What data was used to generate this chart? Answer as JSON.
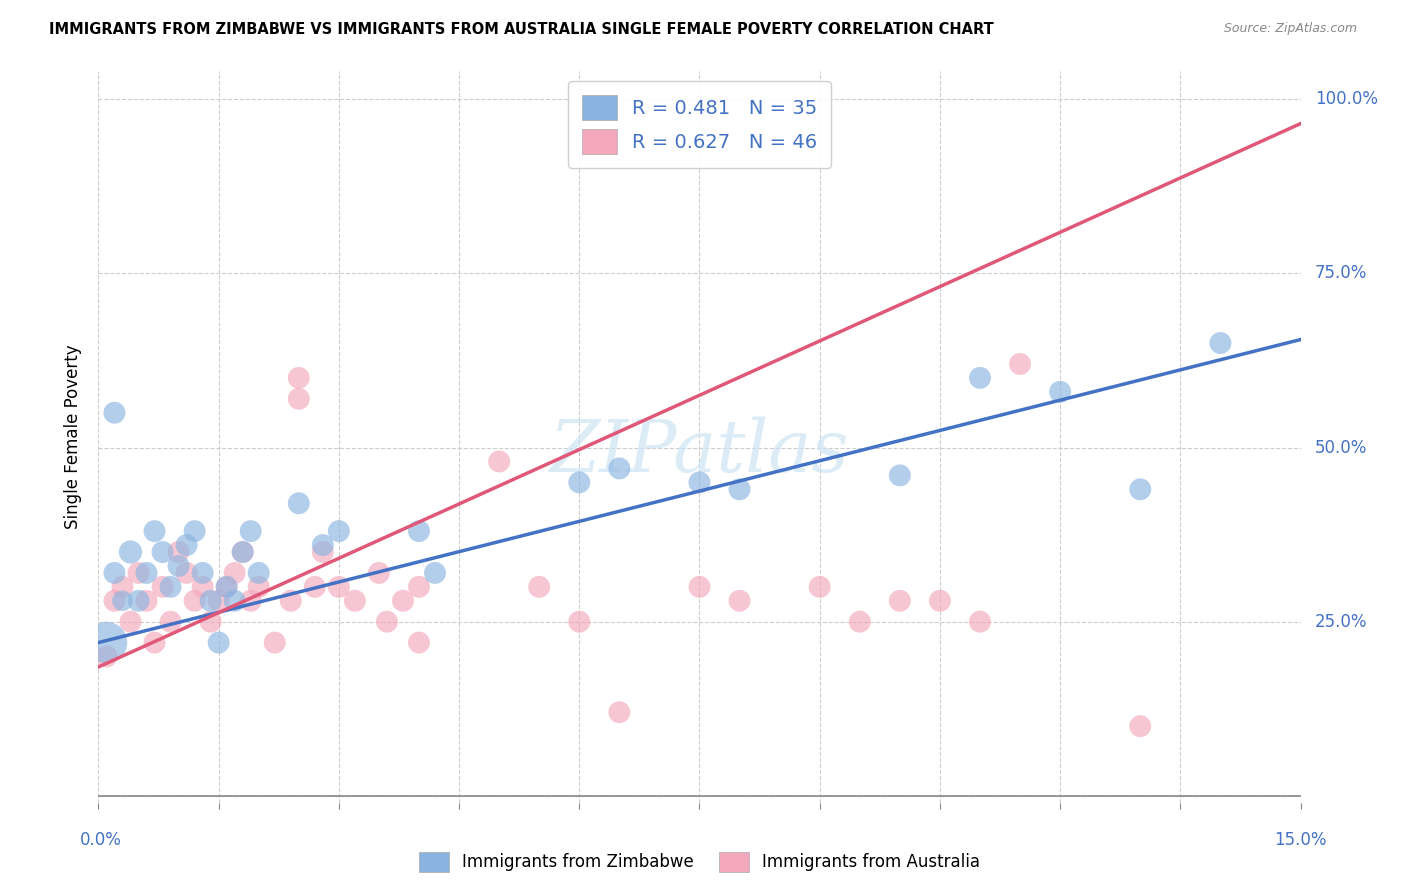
{
  "title": "IMMIGRANTS FROM ZIMBABWE VS IMMIGRANTS FROM AUSTRALIA SINGLE FEMALE POVERTY CORRELATION CHART",
  "source": "Source: ZipAtlas.com",
  "ylabel": "Single Female Poverty",
  "legend_label_1": "Immigrants from Zimbabwe",
  "legend_label_2": "Immigrants from Australia",
  "r1": 0.481,
  "n1": 35,
  "r2": 0.627,
  "n2": 46,
  "color_zimbabwe": "#8ab4e0",
  "color_australia": "#f4a8bc",
  "color_line_zimbabwe": "#4472c4",
  "color_line_australia": "#e05878",
  "watermark": "ZIPatlas",
  "xlim": [
    0.0,
    0.15
  ],
  "ylim": [
    -0.01,
    1.04
  ],
  "zim_trend": [
    0.22,
    0.655
  ],
  "aus_trend": [
    0.185,
    0.965
  ],
  "zimbabwe_points": [
    [
      0.001,
      0.22
    ],
    [
      0.002,
      0.32
    ],
    [
      0.003,
      0.28
    ],
    [
      0.004,
      0.35
    ],
    [
      0.005,
      0.28
    ],
    [
      0.006,
      0.32
    ],
    [
      0.007,
      0.38
    ],
    [
      0.008,
      0.35
    ],
    [
      0.009,
      0.3
    ],
    [
      0.01,
      0.33
    ],
    [
      0.011,
      0.36
    ],
    [
      0.012,
      0.38
    ],
    [
      0.013,
      0.32
    ],
    [
      0.014,
      0.28
    ],
    [
      0.015,
      0.22
    ],
    [
      0.016,
      0.3
    ],
    [
      0.017,
      0.28
    ],
    [
      0.018,
      0.35
    ],
    [
      0.019,
      0.38
    ],
    [
      0.02,
      0.32
    ],
    [
      0.025,
      0.42
    ],
    [
      0.028,
      0.36
    ],
    [
      0.03,
      0.38
    ],
    [
      0.04,
      0.38
    ],
    [
      0.042,
      0.32
    ],
    [
      0.06,
      0.45
    ],
    [
      0.065,
      0.47
    ],
    [
      0.075,
      0.45
    ],
    [
      0.08,
      0.44
    ],
    [
      0.1,
      0.46
    ],
    [
      0.11,
      0.6
    ],
    [
      0.12,
      0.58
    ],
    [
      0.13,
      0.44
    ],
    [
      0.14,
      0.65
    ],
    [
      0.002,
      0.55
    ]
  ],
  "zimbabwe_sizes": [
    900,
    250,
    220,
    280,
    250,
    250,
    250,
    250,
    250,
    250,
    250,
    250,
    250,
    250,
    250,
    250,
    250,
    250,
    250,
    250,
    250,
    250,
    250,
    250,
    250,
    250,
    250,
    250,
    250,
    250,
    250,
    250,
    250,
    250,
    250
  ],
  "australia_points": [
    [
      0.001,
      0.2
    ],
    [
      0.002,
      0.28
    ],
    [
      0.003,
      0.3
    ],
    [
      0.004,
      0.25
    ],
    [
      0.005,
      0.32
    ],
    [
      0.006,
      0.28
    ],
    [
      0.007,
      0.22
    ],
    [
      0.008,
      0.3
    ],
    [
      0.009,
      0.25
    ],
    [
      0.01,
      0.35
    ],
    [
      0.011,
      0.32
    ],
    [
      0.012,
      0.28
    ],
    [
      0.013,
      0.3
    ],
    [
      0.014,
      0.25
    ],
    [
      0.015,
      0.28
    ],
    [
      0.016,
      0.3
    ],
    [
      0.017,
      0.32
    ],
    [
      0.018,
      0.35
    ],
    [
      0.019,
      0.28
    ],
    [
      0.02,
      0.3
    ],
    [
      0.022,
      0.22
    ],
    [
      0.024,
      0.28
    ],
    [
      0.025,
      0.6
    ],
    [
      0.025,
      0.57
    ],
    [
      0.027,
      0.3
    ],
    [
      0.028,
      0.35
    ],
    [
      0.03,
      0.3
    ],
    [
      0.032,
      0.28
    ],
    [
      0.035,
      0.32
    ],
    [
      0.036,
      0.25
    ],
    [
      0.038,
      0.28
    ],
    [
      0.04,
      0.3
    ],
    [
      0.04,
      0.22
    ],
    [
      0.05,
      0.48
    ],
    [
      0.055,
      0.3
    ],
    [
      0.06,
      0.25
    ],
    [
      0.065,
      0.12
    ],
    [
      0.075,
      0.3
    ],
    [
      0.08,
      0.28
    ],
    [
      0.09,
      0.3
    ],
    [
      0.095,
      0.25
    ],
    [
      0.1,
      0.28
    ],
    [
      0.105,
      0.28
    ],
    [
      0.11,
      0.25
    ],
    [
      0.115,
      0.62
    ],
    [
      0.13,
      0.1
    ]
  ],
  "australia_sizes": [
    250,
    250,
    250,
    250,
    250,
    250,
    250,
    250,
    250,
    250,
    250,
    250,
    250,
    250,
    250,
    250,
    250,
    250,
    250,
    250,
    250,
    250,
    250,
    250,
    250,
    250,
    250,
    250,
    250,
    250,
    250,
    250,
    250,
    250,
    250,
    250,
    250,
    250,
    250,
    250,
    250,
    250,
    250,
    250,
    250,
    250
  ]
}
